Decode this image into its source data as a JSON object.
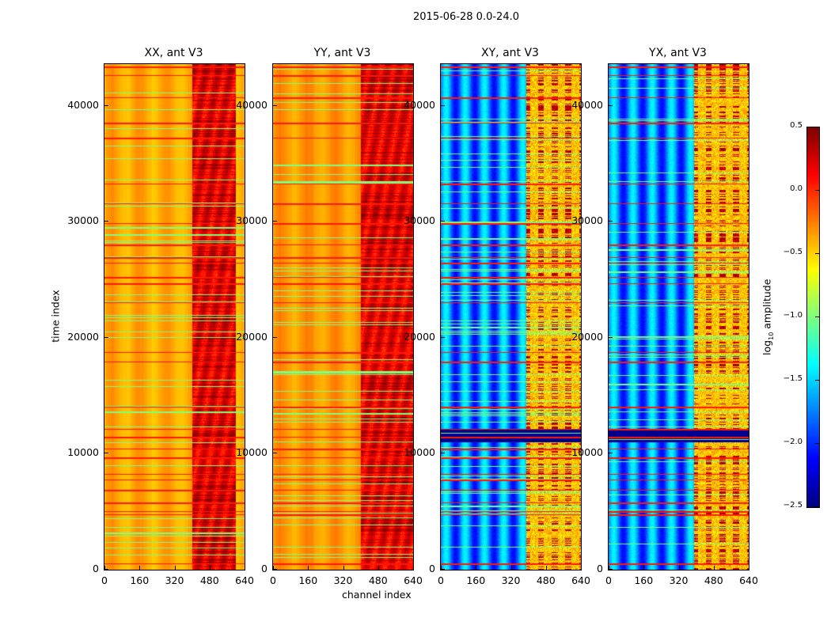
{
  "chart_data": {
    "type": "heatmap",
    "title": "2015-06-28 0.0-24.0",
    "xlabel": "channel index",
    "ylabel": "time index",
    "xlim": [
      0,
      640
    ],
    "ylim": [
      0,
      43600
    ],
    "xticks": [
      "0",
      "160",
      "320",
      "480",
      "640"
    ],
    "xtick_values": [
      0,
      160,
      320,
      480,
      640
    ],
    "yticks": [
      "0",
      "10000",
      "20000",
      "30000",
      "40000"
    ],
    "ytick_values": [
      0,
      10000,
      20000,
      30000,
      40000
    ],
    "panels": [
      {
        "title": "XX, ant V3",
        "kind": "auto",
        "base": -0.4,
        "rfi_band_channels": [
          400,
          600
        ],
        "rfi_level": 0.15
      },
      {
        "title": "YY, ant V3",
        "kind": "auto",
        "base": -0.35,
        "rfi_band_channels": [
          400,
          640
        ],
        "rfi_level": 0.15
      },
      {
        "title": "XY, ant V3",
        "kind": "cross",
        "base": -1.8,
        "rfi_band_channels": [
          390,
          640
        ],
        "rfi_level": -0.7
      },
      {
        "title": "YX, ant V3",
        "kind": "cross",
        "base": -1.8,
        "rfi_band_channels": [
          390,
          640
        ],
        "rfi_level": -0.7
      }
    ],
    "flagged_time_rows": [
      500,
      4700,
      5000,
      5700,
      6800,
      7700,
      8200,
      9600,
      10400,
      11400,
      12100,
      14000,
      17900,
      18700,
      23000,
      24600,
      25200,
      26400,
      26900,
      28000,
      29800,
      31500,
      33200,
      37200,
      38500,
      40700,
      42600,
      43300
    ],
    "low_band_rows_cross": [
      11000,
      12000
    ],
    "colorbar": {
      "label": "log10 amplitude",
      "label_main": "log",
      "label_sub": "10",
      "label_rest": " amplitude",
      "range": [
        -2.5,
        0.5
      ],
      "ticks": [
        "0.5",
        "0.0",
        "−0.5",
        "−1.0",
        "−1.5",
        "−2.0",
        "−2.5"
      ],
      "tick_values": [
        0.5,
        0.0,
        -0.5,
        -1.0,
        -1.5,
        -2.0,
        -2.5
      ],
      "colormap": "jet"
    }
  }
}
